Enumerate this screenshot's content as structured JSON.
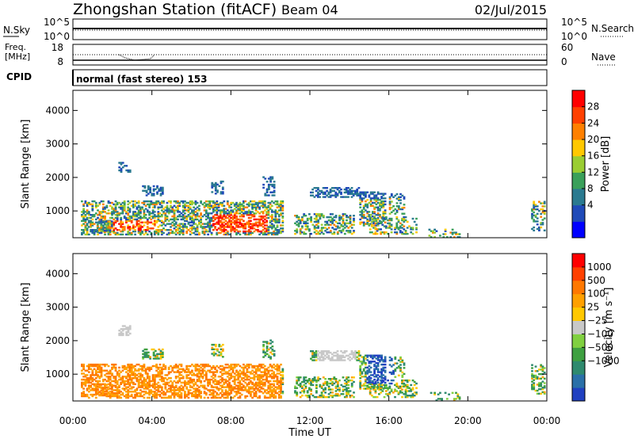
{
  "header": {
    "station": "Zhongshan Station (fitACF)",
    "beam": "Beam 04",
    "date": "02/Jul/2015"
  },
  "noise_panel": {
    "left_label": "N.Sky",
    "right_label": "N.Search",
    "left_ticks": [
      "10^5",
      "10^0"
    ],
    "right_ticks": [
      "10^5",
      "10^0"
    ]
  },
  "freq_panel": {
    "left_label_line1": "Freq.",
    "left_label_line2": "[MHz]",
    "left_ticks": [
      "18",
      "8"
    ],
    "right_ticks": [
      "60",
      "0"
    ],
    "right_label": "Nave"
  },
  "cpid": {
    "label": "CPID",
    "text": "normal (fast stereo) 153"
  },
  "chart_data": [
    {
      "type": "heatmap",
      "name": "power",
      "ylabel": "Slant Range [km]",
      "ylim": [
        200,
        4600
      ],
      "yticks": [
        "1000",
        "2000",
        "3000",
        "4000"
      ],
      "colorbar": {
        "label": "Power [dB]",
        "ticks": [
          "28",
          "24",
          "20",
          "16",
          "12",
          "8",
          "4"
        ],
        "colors": [
          "#0000ff",
          "#1f4ab8",
          "#2a7a90",
          "#3aa05a",
          "#9acd32",
          "#ffc800",
          "#ff8000",
          "#ff4000",
          "#ff0000"
        ]
      }
    },
    {
      "type": "heatmap",
      "name": "velocity",
      "ylabel": "Slant Range [km]",
      "ylim": [
        200,
        4600
      ],
      "yticks": [
        "1000",
        "2000",
        "3000",
        "4000"
      ],
      "xlabel": "Time UT",
      "xticks": [
        "00:00",
        "04:00",
        "08:00",
        "12:00",
        "16:00",
        "20:00",
        "00:00"
      ],
      "colorbar": {
        "label": "Velocity [m s⁻¹]",
        "ticks": [
          "1000",
          "500",
          "100",
          "25",
          "−25",
          "−100",
          "−500",
          "−1000"
        ],
        "colors": [
          "#2040c0",
          "#2a70a8",
          "#2e8a6e",
          "#3ea040",
          "#80d040",
          "#c8c8c8",
          "#ffc800",
          "#ffa000",
          "#ff7800",
          "#ff4000",
          "#ff0000"
        ]
      }
    }
  ]
}
